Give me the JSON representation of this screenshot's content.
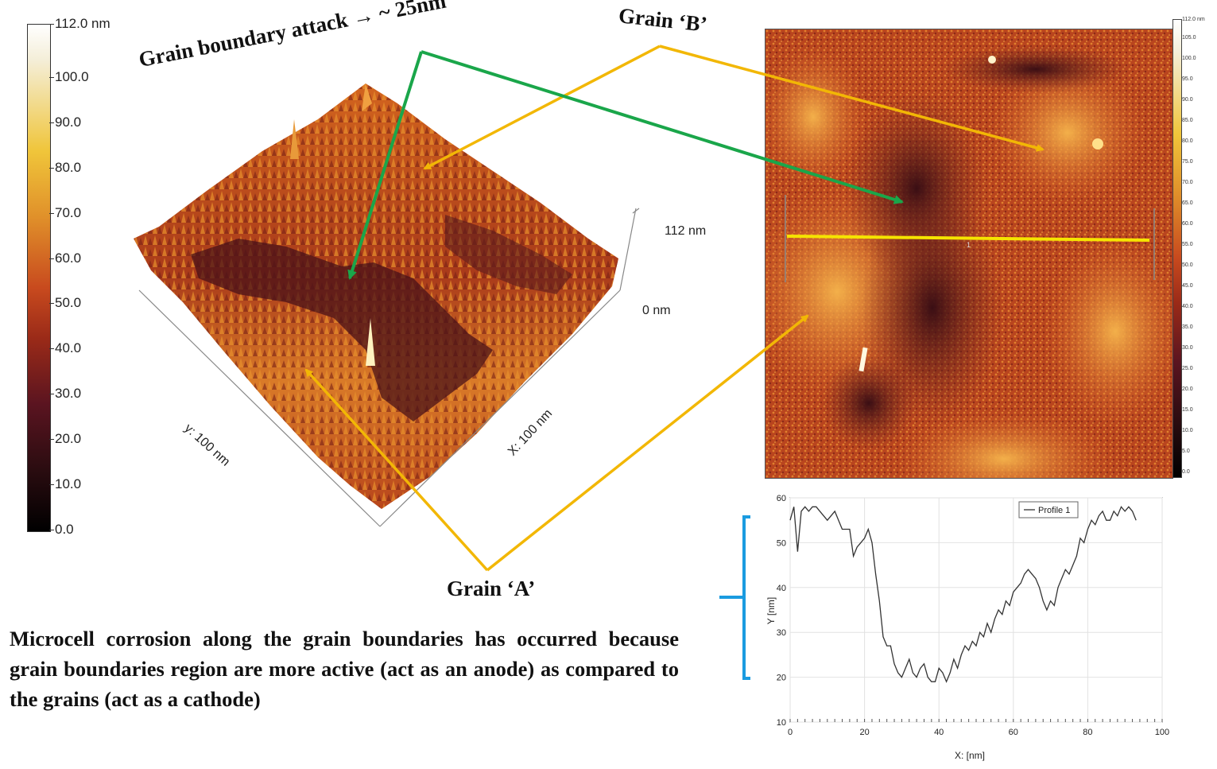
{
  "scale_bar": {
    "top_label": "112.0 nm",
    "ticks": [
      "100.0",
      "90.0",
      "80.0",
      "70.0",
      "60.0",
      "50.0",
      "40.0",
      "30.0",
      "20.0",
      "10.0",
      "0.0"
    ]
  },
  "surface_3d": {
    "z_top": "112 nm",
    "z_bottom": "0 nm",
    "y_axis": "y: 100 nm",
    "x_axis": "X: 100 nm"
  },
  "annotations": {
    "grain_boundary": "Grain boundary attack → ~ 25nm",
    "grain_b": "Grain ‘B’",
    "grain_a": "Grain ‘A’"
  },
  "caption": "Microcell corrosion along the grain boundaries has occurred because grain boundaries region are more active (act as an anode) as compared to the grains (act as a cathode)",
  "map_scale": {
    "ticks": [
      "112.0 nm",
      "105.0",
      "100.0",
      "95.0",
      "90.0",
      "85.0",
      "80.0",
      "75.0",
      "70.0",
      "65.0",
      "60.0",
      "55.0",
      "50.0",
      "45.0",
      "40.0",
      "35.0",
      "30.0",
      "25.0",
      "20.0",
      "15.0",
      "10.0",
      "5.0",
      "0.0"
    ],
    "line_marker": "1"
  },
  "colors": {
    "grain_arrow": "#f2b705",
    "boundary_arrow": "#1aa64a",
    "profile_line": "#f5e400",
    "bracket": "#1a9be0"
  },
  "chart_data": {
    "type": "line",
    "xlabel": "X: [nm]",
    "ylabel": "Y [nm]",
    "xlim": [
      0,
      100
    ],
    "ylim": [
      10,
      60
    ],
    "xticks": [
      0,
      20,
      40,
      60,
      80,
      100
    ],
    "yticks": [
      10,
      20,
      30,
      40,
      50,
      60
    ],
    "legend": "top-right",
    "series": [
      {
        "name": "Profile 1",
        "x": [
          0,
          1,
          2,
          3,
          4,
          5,
          6,
          7,
          8,
          10,
          12,
          14,
          16,
          17,
          18,
          19,
          20,
          21,
          22,
          23,
          24,
          25,
          26,
          27,
          28,
          29,
          30,
          31,
          32,
          33,
          34,
          35,
          36,
          37,
          38,
          39,
          40,
          41,
          42,
          43,
          44,
          45,
          46,
          47,
          48,
          49,
          50,
          51,
          52,
          53,
          54,
          55,
          56,
          57,
          58,
          59,
          60,
          61,
          62,
          63,
          64,
          65,
          66,
          67,
          68,
          69,
          70,
          71,
          72,
          73,
          74,
          75,
          76,
          77,
          78,
          79,
          80,
          81,
          82,
          83,
          84,
          85,
          86,
          87,
          88,
          89,
          90,
          91,
          92,
          93
        ],
        "y": [
          55,
          58,
          48,
          57,
          58,
          57,
          58,
          58,
          57,
          55,
          57,
          53,
          53,
          47,
          49,
          50,
          51,
          53,
          50,
          43,
          37,
          29,
          27,
          27,
          23,
          21,
          20,
          22,
          24,
          21,
          20,
          22,
          23,
          20,
          19,
          19,
          22,
          21,
          19,
          21,
          24,
          22,
          25,
          27,
          26,
          28,
          27,
          30,
          29,
          32,
          30,
          33,
          35,
          34,
          37,
          36,
          39,
          40,
          41,
          43,
          44,
          43,
          42,
          40,
          37,
          35,
          37,
          36,
          40,
          42,
          44,
          43,
          45,
          47,
          51,
          50,
          53,
          55,
          54,
          56,
          57,
          55,
          55,
          57,
          56,
          58,
          57,
          58,
          57,
          55
        ]
      }
    ]
  }
}
